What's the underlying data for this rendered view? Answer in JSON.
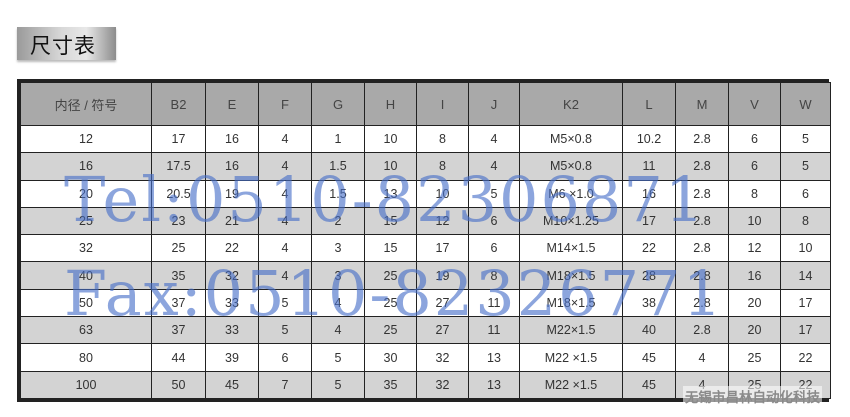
{
  "title": "尺寸表",
  "table": {
    "headers": [
      "内径 / 符号",
      "B2",
      "E",
      "F",
      "G",
      "H",
      "I",
      "J",
      "K2",
      "L",
      "M",
      "V",
      "W"
    ],
    "rows": [
      [
        "12",
        "17",
        "16",
        "4",
        "1",
        "10",
        "8",
        "4",
        "M5×0.8",
        "10.2",
        "2.8",
        "6",
        "5"
      ],
      [
        "16",
        "17.5",
        "16",
        "4",
        "1.5",
        "10",
        "8",
        "4",
        "M5×0.8",
        "11",
        "2.8",
        "6",
        "5"
      ],
      [
        "20",
        "20.5",
        "19",
        "4",
        "1.5",
        "13",
        "10",
        "5",
        "M6 ×1.0",
        "16",
        "2.8",
        "8",
        "6"
      ],
      [
        "25",
        "23",
        "21",
        "4",
        "2",
        "15",
        "12",
        "6",
        "M10×1.25",
        "17",
        "2.8",
        "10",
        "8"
      ],
      [
        "32",
        "25",
        "22",
        "4",
        "3",
        "15",
        "17",
        "6",
        "M14×1.5",
        "22",
        "2.8",
        "12",
        "10"
      ],
      [
        "40",
        "35",
        "32",
        "4",
        "3",
        "25",
        "19",
        "8",
        "M18×1.5",
        "28",
        "2.8",
        "16",
        "14"
      ],
      [
        "50",
        "37",
        "33",
        "5",
        "4",
        "25",
        "27",
        "11",
        "M18×1.5",
        "38",
        "2.8",
        "20",
        "17"
      ],
      [
        "63",
        "37",
        "33",
        "5",
        "4",
        "25",
        "27",
        "11",
        "M22×1.5",
        "40",
        "2.8",
        "20",
        "17"
      ],
      [
        "80",
        "44",
        "39",
        "6",
        "5",
        "30",
        "32",
        "13",
        "M22 ×1.5",
        "45",
        "4",
        "25",
        "22"
      ],
      [
        "100",
        "50",
        "45",
        "7",
        "5",
        "35",
        "32",
        "13",
        "M22 ×1.5",
        "45",
        "4",
        "25",
        "22"
      ]
    ]
  },
  "watermark": {
    "tel": "Tel:0510-82306871",
    "fax": "Fax:0510-82326771",
    "company": "无锡市昌林自动化科技"
  },
  "colors": {
    "header_bg": "#a9a9a9",
    "row_alt_bg": "#d3d3d3",
    "watermark": "#466ec8"
  }
}
